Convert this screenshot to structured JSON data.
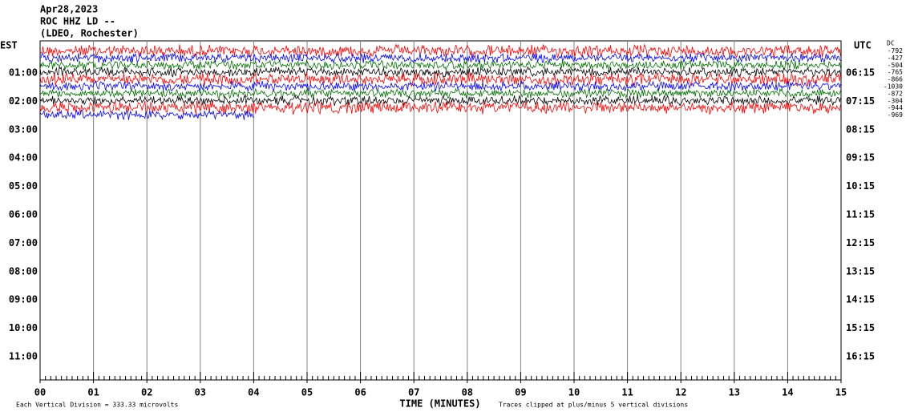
{
  "chart_data": {
    "type": "helicorder",
    "title": "Apr28,2023",
    "subtitle": "ROC HHZ LD --",
    "station": "(LDEO, Rochester)",
    "left_header": "EST",
    "right_header": "UTC",
    "dc_header": "DC",
    "est_labels": [
      "01:00",
      "02:00",
      "03:00",
      "04:00",
      "05:00",
      "06:00",
      "07:00",
      "08:00",
      "09:00",
      "10:00",
      "11:00"
    ],
    "utc_labels": [
      "06:15",
      "07:15",
      "08:15",
      "09:15",
      "10:15",
      "11:15",
      "12:15",
      "13:15",
      "14:15",
      "15:15",
      "16:15"
    ],
    "xlabel": "TIME (MINUTES)",
    "xlim": [
      0,
      15
    ],
    "xticks": [
      {
        "value": 0,
        "label": "00"
      },
      {
        "value": 1,
        "label": "01"
      },
      {
        "value": 2,
        "label": "02"
      },
      {
        "value": 3,
        "label": "03"
      },
      {
        "value": 4,
        "label": "04"
      },
      {
        "value": 5,
        "label": "05"
      },
      {
        "value": 6,
        "label": "06"
      },
      {
        "value": 7,
        "label": "07"
      },
      {
        "value": 8,
        "label": "08"
      },
      {
        "value": 9,
        "label": "09"
      },
      {
        "value": 10,
        "label": "10"
      },
      {
        "value": 11,
        "label": "11"
      },
      {
        "value": 12,
        "label": "12"
      },
      {
        "value": 13,
        "label": "13"
      },
      {
        "value": 14,
        "label": "14"
      },
      {
        "value": 15,
        "label": "15"
      }
    ],
    "xminor_per_major": 10,
    "grid": true,
    "traces": [
      {
        "color": "#ff0000",
        "dc": -792,
        "end": 15
      },
      {
        "color": "#0000ff",
        "dc": -427,
        "end": 15
      },
      {
        "color": "#007000",
        "dc": -504,
        "end": 15
      },
      {
        "color": "#000000",
        "dc": -765,
        "end": 15
      },
      {
        "color": "#ff0000",
        "dc": -866,
        "end": 15
      },
      {
        "color": "#0000ff",
        "dc": -1030,
        "end": 15
      },
      {
        "color": "#007000",
        "dc": -872,
        "end": 15
      },
      {
        "color": "#000000",
        "dc": -304,
        "end": 15
      },
      {
        "color": "#ff0000",
        "dc": -944,
        "end": 15
      },
      {
        "color": "#0000ff",
        "dc": -969,
        "end": 4
      }
    ],
    "footer_left": "Each Vertical Division =  333.33 microvolts",
    "footer_right": "Traces clipped at plus/minus 5 vertical divisions"
  }
}
